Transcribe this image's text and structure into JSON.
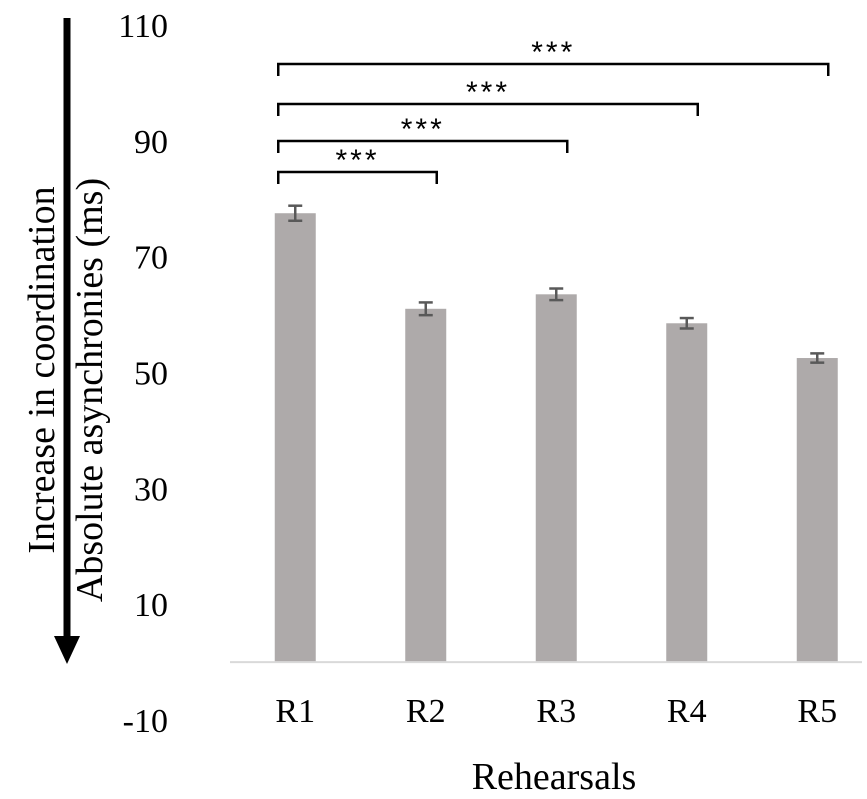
{
  "chart_data": {
    "type": "bar",
    "categories": [
      "R1",
      "R2",
      "R3",
      "R4",
      "R5"
    ],
    "values": [
      77.5,
      61,
      63.5,
      58.5,
      52.5
    ],
    "errors": [
      1.3,
      1.1,
      1.0,
      0.9,
      0.8
    ],
    "xlabel": "Rehearsals",
    "ylabel": "Absolute asynchronies (ms)",
    "arrow_label": "Increase in coordination",
    "ylim": [
      -10,
      110
    ],
    "yticks": [
      "-10",
      "10",
      "30",
      "50",
      "70",
      "90",
      "110"
    ],
    "grid": false,
    "significance": [
      {
        "from": "R1",
        "to": "R2",
        "label": "***"
      },
      {
        "from": "R1",
        "to": "R3",
        "label": "***"
      },
      {
        "from": "R1",
        "to": "R4",
        "label": "***"
      },
      {
        "from": "R1",
        "to": "R5",
        "label": "***"
      }
    ],
    "colors": {
      "bar": "#aeaaaa",
      "errorbar": "#595959",
      "axis": "#d9d9d9"
    }
  }
}
